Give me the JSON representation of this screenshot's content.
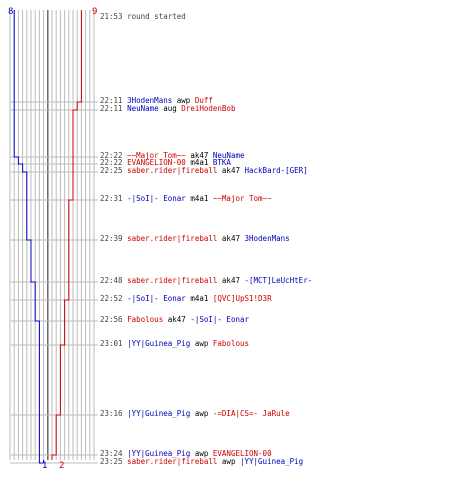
{
  "teams": {
    "blue_color": "#0000cc",
    "red_color": "#cc0000",
    "time_color": "#444444",
    "grid_color": "#bbbbbb",
    "center_color": "#666666"
  },
  "scale": {
    "top_left": "8",
    "top_right": "9",
    "bottom_blue": "1",
    "bottom_red": "2"
  },
  "events": [
    {
      "time": "21:53",
      "text": "round started",
      "killer": "",
      "kteam": "",
      "weapon": "",
      "victim": "",
      "vteam": ""
    },
    {
      "time": "22:11",
      "killer": "3HodenMans",
      "kteam": "blue",
      "weapon": "awp",
      "victim": "Duff",
      "vteam": "red"
    },
    {
      "time": "22:11",
      "killer": "NeuName",
      "kteam": "blue",
      "weapon": "aug",
      "victim": "DreiHodenBob",
      "vteam": "red"
    },
    {
      "time": "22:22",
      "killer": "~~Major Tom~~",
      "kteam": "red",
      "weapon": "ak47",
      "victim": "NeuName",
      "vteam": "blue"
    },
    {
      "time": "22:22",
      "killer": "EVANGELION-00",
      "kteam": "red",
      "weapon": "m4a1",
      "victim": "BTKA",
      "vteam": "blue"
    },
    {
      "time": "22:25",
      "killer": "saber.rider|fireball",
      "kteam": "red",
      "weapon": "ak47",
      "victim": "HackBard-[GER]",
      "vteam": "blue"
    },
    {
      "time": "22:31",
      "killer": "-|SoI|- Eonar",
      "kteam": "blue",
      "weapon": "m4a1",
      "victim": "~~Major Tom~~",
      "vteam": "red"
    },
    {
      "time": "22:39",
      "killer": "saber.rider|fireball",
      "kteam": "red",
      "weapon": "ak47",
      "victim": "3HodenMans",
      "vteam": "blue"
    },
    {
      "time": "22:48",
      "killer": "saber.rider|fireball",
      "kteam": "red",
      "weapon": "ak47",
      "victim": "-[MCT]LeUcHtEr-",
      "vteam": "blue"
    },
    {
      "time": "22:52",
      "killer": "-|SoI|- Eonar",
      "kteam": "blue",
      "weapon": "m4a1",
      "victim": "[QVC]UpS1!D3R",
      "vteam": "red"
    },
    {
      "time": "22:56",
      "killer": "Fabolous",
      "kteam": "red",
      "weapon": "ak47",
      "victim": "-|SoI|- Eonar",
      "vteam": "blue"
    },
    {
      "time": "23:01",
      "killer": "|YY|Guinea_Pig",
      "kteam": "blue",
      "weapon": "awp",
      "victim": "Fabolous",
      "vteam": "red"
    },
    {
      "time": "23:16",
      "killer": "|YY|Guinea_Pig",
      "kteam": "blue",
      "weapon": "awp",
      "victim": "-=DIA|CS=- JaRule",
      "vteam": "red"
    },
    {
      "time": "23:24",
      "killer": "|YY|Guinea_Pig",
      "kteam": "blue",
      "weapon": "awp",
      "victim": "EVANGELION-00",
      "vteam": "red"
    },
    {
      "time": "23:25",
      "killer": "saber.rider|fireball",
      "kteam": "red",
      "weapon": "awp",
      "victim": "|YY|Guinea_Pig",
      "vteam": "blue"
    }
  ],
  "graph": {
    "blue_counts": [
      8,
      8,
      8,
      7,
      6,
      5,
      5,
      4,
      3,
      3,
      2,
      2,
      2,
      2,
      1
    ],
    "red_counts": [
      9,
      8,
      7,
      7,
      7,
      7,
      6,
      6,
      6,
      5,
      5,
      4,
      3,
      2,
      2
    ]
  }
}
